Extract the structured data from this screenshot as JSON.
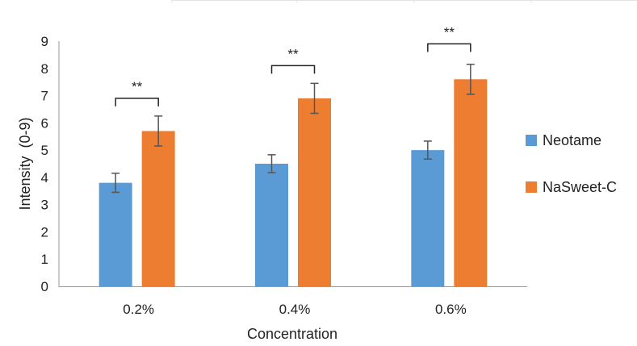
{
  "chart_data": {
    "type": "bar",
    "title": "",
    "xlabel": "Concentration",
    "ylabel": "Intensity  (0-9)",
    "categories": [
      "0.2%",
      "0.4%",
      "0.6%"
    ],
    "ylim": [
      0,
      9
    ],
    "yticks": [
      "0",
      "1",
      "2",
      "3",
      "4",
      "5",
      "6",
      "7",
      "8",
      "9"
    ],
    "grid": false,
    "legend_position": "right",
    "series": [
      {
        "name": "Neotame",
        "color": "#5B9BD5",
        "values": [
          3.8,
          4.5,
          5.0
        ],
        "errors": [
          0.35,
          0.33,
          0.33
        ]
      },
      {
        "name": "NaSweet-C",
        "color": "#ED7D31",
        "values": [
          5.7,
          6.9,
          7.6
        ],
        "errors": [
          0.55,
          0.55,
          0.55
        ]
      }
    ],
    "significance": [
      {
        "category": "0.2%",
        "label": "**",
        "level": 6.9
      },
      {
        "category": "0.4%",
        "label": "**",
        "level": 8.1
      },
      {
        "category": "0.6%",
        "label": "**",
        "level": 8.9
      }
    ]
  }
}
